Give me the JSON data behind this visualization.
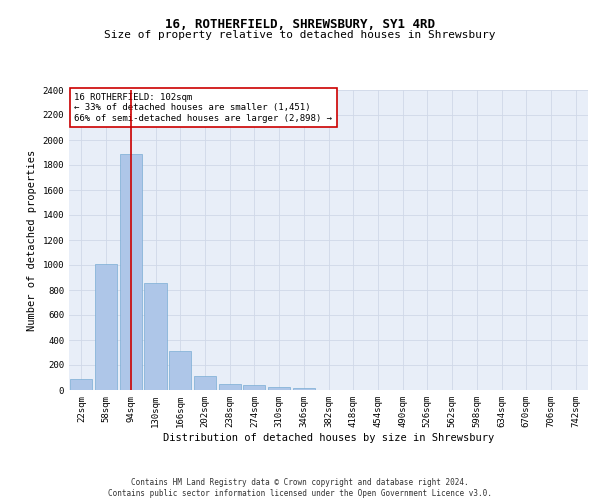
{
  "title": "16, ROTHERFIELD, SHREWSBURY, SY1 4RD",
  "subtitle": "Size of property relative to detached houses in Shrewsbury",
  "xlabel": "Distribution of detached houses by size in Shrewsbury",
  "ylabel": "Number of detached properties",
  "bar_labels": [
    "22sqm",
    "58sqm",
    "94sqm",
    "130sqm",
    "166sqm",
    "202sqm",
    "238sqm",
    "274sqm",
    "310sqm",
    "346sqm",
    "382sqm",
    "418sqm",
    "454sqm",
    "490sqm",
    "526sqm",
    "562sqm",
    "598sqm",
    "634sqm",
    "670sqm",
    "706sqm",
    "742sqm"
  ],
  "bar_values": [
    85,
    1010,
    1890,
    860,
    315,
    115,
    48,
    38,
    28,
    18,
    0,
    0,
    0,
    0,
    0,
    0,
    0,
    0,
    0,
    0,
    0
  ],
  "bar_color": "#aec6e8",
  "bar_edge_color": "#7aadd4",
  "vline_x": 2,
  "vline_color": "#cc0000",
  "annotation_text": "16 ROTHERFIELD: 102sqm\n← 33% of detached houses are smaller (1,451)\n66% of semi-detached houses are larger (2,898) →",
  "annotation_box_color": "#ffffff",
  "annotation_box_edge_color": "#cc0000",
  "ylim": [
    0,
    2400
  ],
  "yticks": [
    0,
    200,
    400,
    600,
    800,
    1000,
    1200,
    1400,
    1600,
    1800,
    2000,
    2200,
    2400
  ],
  "grid_color": "#d0d8e8",
  "axes_bg_color": "#e8eef8",
  "footer_text": "Contains HM Land Registry data © Crown copyright and database right 2024.\nContains public sector information licensed under the Open Government Licence v3.0.",
  "title_fontsize": 9,
  "subtitle_fontsize": 8,
  "xlabel_fontsize": 7.5,
  "ylabel_fontsize": 7.5,
  "tick_fontsize": 6.5,
  "annotation_fontsize": 6.5,
  "footer_fontsize": 5.5
}
